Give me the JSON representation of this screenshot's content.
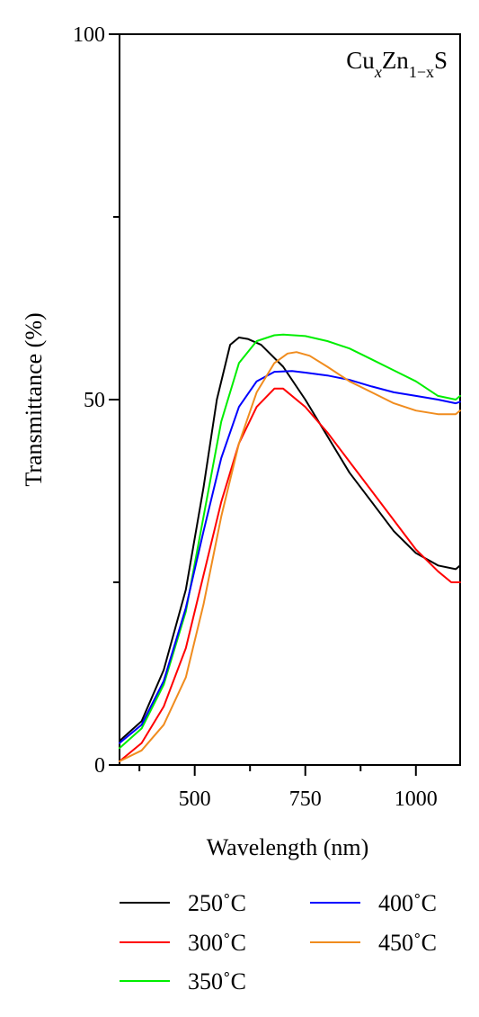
{
  "chart_data": {
    "type": "line",
    "annotation": "Cu_x Zn_1-x S",
    "xlabel": "Wavelength (nm)",
    "ylabel": "Transmittance (%)",
    "xlim": [
      330,
      1100
    ],
    "ylim": [
      0,
      100
    ],
    "x_ticks": [
      500,
      750,
      1000
    ],
    "x_minor_ticks": [
      375,
      625,
      875
    ],
    "y_ticks": [
      0,
      50,
      100
    ],
    "y_minor_ticks": [
      25,
      75
    ],
    "x_tick_labels": [
      "500",
      "750",
      "1000"
    ],
    "y_tick_labels": [
      "0",
      "50",
      "100"
    ],
    "grid": false,
    "legend_placement": "below plot",
    "series": [
      {
        "name": "250˚C",
        "color": "#000000",
        "x": [
          330,
          380,
          430,
          480,
          520,
          550,
          580,
          600,
          620,
          650,
          700,
          750,
          800,
          850,
          900,
          950,
          1000,
          1050,
          1090,
          1100
        ],
        "y": [
          3.3,
          6,
          13,
          24,
          38,
          50,
          57.5,
          58.5,
          58.3,
          57.5,
          54.5,
          50,
          45,
          40,
          36,
          32,
          29,
          27.3,
          26.8,
          27.3
        ]
      },
      {
        "name": "300˚C",
        "color": "#ff0000",
        "x": [
          330,
          380,
          430,
          480,
          520,
          560,
          600,
          640,
          680,
          700,
          750,
          800,
          850,
          900,
          950,
          1000,
          1050,
          1080,
          1100
        ],
        "y": [
          0.5,
          3,
          8,
          16,
          26,
          36,
          44,
          49,
          51.5,
          51.5,
          49,
          45.5,
          41.5,
          37.5,
          33.5,
          29.5,
          26.5,
          25,
          25
        ]
      },
      {
        "name": "350˚C",
        "color": "#00ee00",
        "x": [
          330,
          380,
          430,
          480,
          520,
          560,
          600,
          640,
          680,
          700,
          750,
          800,
          850,
          900,
          950,
          1000,
          1050,
          1090,
          1100
        ],
        "y": [
          2.3,
          5,
          11,
          21,
          34,
          47,
          55,
          58,
          58.8,
          58.9,
          58.7,
          58,
          57,
          55.5,
          54,
          52.5,
          50.5,
          50,
          50.5
        ]
      },
      {
        "name": "400˚C",
        "color": "#0000ff",
        "x": [
          330,
          380,
          430,
          480,
          520,
          560,
          600,
          640,
          680,
          720,
          750,
          800,
          850,
          900,
          950,
          1000,
          1050,
          1090,
          1100
        ],
        "y": [
          3,
          5.5,
          11.5,
          21.5,
          32,
          42,
          49,
          52.5,
          53.8,
          53.9,
          53.7,
          53.3,
          52.7,
          51.8,
          51,
          50.5,
          50,
          49.5,
          49.7
        ]
      },
      {
        "name": "450˚C",
        "color": "#f08c1e",
        "x": [
          330,
          380,
          430,
          480,
          520,
          560,
          600,
          640,
          680,
          710,
          730,
          760,
          800,
          850,
          900,
          950,
          1000,
          1050,
          1090,
          1100
        ],
        "y": [
          0.5,
          2,
          5.5,
          12,
          22,
          34,
          44,
          51,
          55,
          56.3,
          56.5,
          56,
          54.5,
          52.5,
          51,
          49.5,
          48.5,
          48,
          48,
          48.5
        ]
      }
    ]
  }
}
